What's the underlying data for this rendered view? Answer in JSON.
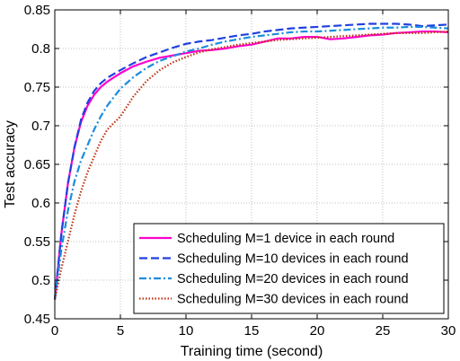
{
  "chart_data": {
    "type": "line",
    "title": "",
    "xlabel": "Training time (second)",
    "ylabel": "Test accuracy",
    "xlim": [
      0,
      30
    ],
    "ylim": [
      0.45,
      0.85
    ],
    "xticks": [
      0,
      5,
      10,
      15,
      20,
      25,
      30
    ],
    "yticks": [
      0.45,
      0.5,
      0.55,
      0.6,
      0.65,
      0.7,
      0.75,
      0.8,
      0.85
    ],
    "xtick_labels": [
      "0",
      "5",
      "10",
      "15",
      "20",
      "25",
      "30"
    ],
    "ytick_labels": [
      "0.45",
      "0.5",
      "0.55",
      "0.6",
      "0.65",
      "0.7",
      "0.75",
      "0.8",
      "0.85"
    ],
    "grid": true,
    "legend_position": "bottom-right",
    "series": [
      {
        "name": "Scheduling M=1 device in each round",
        "color": "#ff00cc",
        "dash": "solid",
        "x": [
          0,
          0.5,
          1,
          1.5,
          2,
          2.5,
          3,
          3.5,
          4,
          5,
          6,
          7,
          8,
          9,
          10,
          11,
          12,
          13,
          14,
          15,
          16,
          17,
          18,
          19,
          20,
          21,
          22,
          23,
          24,
          25,
          26,
          27,
          28,
          29,
          30
        ],
        "y": [
          0.475,
          0.56,
          0.625,
          0.672,
          0.705,
          0.726,
          0.74,
          0.75,
          0.757,
          0.768,
          0.777,
          0.783,
          0.788,
          0.791,
          0.794,
          0.797,
          0.798,
          0.8,
          0.803,
          0.805,
          0.809,
          0.813,
          0.813,
          0.815,
          0.815,
          0.812,
          0.813,
          0.815,
          0.817,
          0.818,
          0.82,
          0.821,
          0.822,
          0.822,
          0.821
        ]
      },
      {
        "name": "Scheduling M=10 devices in each round",
        "color": "#2040e0",
        "dash": "dashed",
        "x": [
          0,
          0.5,
          1,
          1.5,
          2,
          2.5,
          3,
          3.5,
          4,
          5,
          6,
          7,
          8,
          9,
          10,
          11,
          12,
          13,
          14,
          15,
          16,
          17,
          18,
          19,
          20,
          21,
          22,
          23,
          24,
          25,
          26,
          27,
          28,
          29,
          30
        ],
        "y": [
          0.475,
          0.56,
          0.625,
          0.672,
          0.708,
          0.73,
          0.745,
          0.755,
          0.762,
          0.772,
          0.781,
          0.789,
          0.795,
          0.801,
          0.806,
          0.809,
          0.811,
          0.814,
          0.817,
          0.819,
          0.822,
          0.824,
          0.826,
          0.827,
          0.828,
          0.829,
          0.83,
          0.831,
          0.832,
          0.832,
          0.832,
          0.831,
          0.829,
          0.83,
          0.831
        ]
      },
      {
        "name": "Scheduling M=20 devices in each round",
        "color": "#1a8cde",
        "dash": "dashdot",
        "x": [
          0,
          0.5,
          1,
          1.5,
          2,
          2.5,
          3,
          3.5,
          4,
          5,
          6,
          7,
          8,
          9,
          10,
          11,
          12,
          13,
          14,
          15,
          16,
          17,
          18,
          19,
          20,
          21,
          22,
          23,
          24,
          25,
          26,
          27,
          28,
          29,
          30
        ],
        "y": [
          0.475,
          0.54,
          0.59,
          0.628,
          0.655,
          0.675,
          0.695,
          0.712,
          0.726,
          0.748,
          0.763,
          0.775,
          0.784,
          0.79,
          0.796,
          0.8,
          0.805,
          0.809,
          0.812,
          0.815,
          0.817,
          0.819,
          0.821,
          0.822,
          0.822,
          0.823,
          0.824,
          0.825,
          0.826,
          0.827,
          0.827,
          0.828,
          0.828,
          0.827,
          0.826
        ]
      },
      {
        "name": "Scheduling M=30 devices in each round",
        "color": "#c03010",
        "dash": "dotted",
        "x": [
          0,
          0.5,
          1,
          1.5,
          2,
          2.5,
          3,
          3.5,
          4,
          5,
          6,
          7,
          8,
          9,
          10,
          11,
          12,
          13,
          14,
          15,
          16,
          17,
          18,
          19,
          20,
          21,
          22,
          23,
          24,
          25,
          26,
          27,
          28,
          29,
          30
        ],
        "y": [
          0.475,
          0.515,
          0.55,
          0.585,
          0.615,
          0.64,
          0.66,
          0.68,
          0.695,
          0.712,
          0.738,
          0.758,
          0.772,
          0.782,
          0.789,
          0.795,
          0.799,
          0.802,
          0.805,
          0.807,
          0.809,
          0.811,
          0.812,
          0.813,
          0.814,
          0.815,
          0.816,
          0.817,
          0.818,
          0.819,
          0.82,
          0.82,
          0.82,
          0.821,
          0.822
        ]
      }
    ]
  }
}
